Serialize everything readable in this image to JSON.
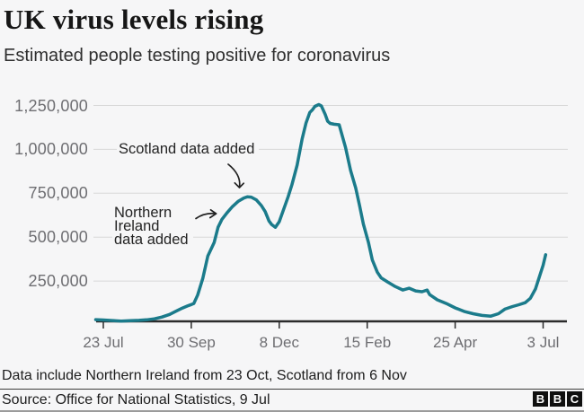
{
  "page": {
    "background": "#f6f6f7",
    "title": "UK virus levels rising",
    "subtitle": "Estimated people testing positive for coronavirus"
  },
  "chart_data": {
    "type": "line",
    "title": "UK virus levels rising",
    "subtitle": "Estimated people testing positive for coronavirus",
    "line_color": "#1b7b8b",
    "grid_color": "#d8d8d8",
    "axis_color": "#2b2b2b",
    "tick_label_color": "#6e6e72",
    "grid": true,
    "legend": false,
    "xlabel": "",
    "ylabel": "",
    "x_axis_dates": [
      "23 Jul",
      "30 Sep",
      "8 Dec",
      "15 Feb",
      "25 Apr",
      "3 Jul"
    ],
    "x_ticks": [
      {
        "day": 0,
        "label": "23 Jul"
      },
      {
        "day": 69,
        "label": "30 Sep"
      },
      {
        "day": 138,
        "label": "8 Dec"
      },
      {
        "day": 207,
        "label": "15 Feb"
      },
      {
        "day": 276,
        "label": "25 Apr"
      },
      {
        "day": 345,
        "label": "3 Jul"
      }
    ],
    "y_ticks": [
      {
        "value": 250000,
        "label": "250,000"
      },
      {
        "value": 500000,
        "label": "500,000"
      },
      {
        "value": 750000,
        "label": "750,000"
      },
      {
        "value": 1000000,
        "label": "1,000,000"
      },
      {
        "value": 1250000,
        "label": "1,250,000"
      }
    ],
    "ylim": [
      0,
      1300000
    ],
    "xlim_days": [
      -6,
      347
    ],
    "annotations": [
      {
        "id": "scotland",
        "text": "Scotland data added"
      },
      {
        "id": "northern-ireland",
        "text": "Northern Ireland data added",
        "lines": [
          "Northern",
          "Ireland",
          "data added"
        ]
      }
    ],
    "series": [
      {
        "name": "Estimated people testing positive",
        "points": [
          [
            -6,
            30000
          ],
          [
            0,
            28000
          ],
          [
            7,
            25000
          ],
          [
            14,
            22000
          ],
          [
            21,
            24000
          ],
          [
            28,
            26000
          ],
          [
            34,
            29000
          ],
          [
            40,
            35000
          ],
          [
            46,
            45000
          ],
          [
            52,
            60000
          ],
          [
            57,
            78000
          ],
          [
            62,
            96000
          ],
          [
            66,
            108000
          ],
          [
            69,
            116000
          ],
          [
            71,
            122000
          ],
          [
            74,
            170000
          ],
          [
            78,
            265000
          ],
          [
            82,
            392000
          ],
          [
            87,
            470000
          ],
          [
            90,
            556000
          ],
          [
            93,
            600000
          ],
          [
            97,
            638000
          ],
          [
            101,
            672000
          ],
          [
            106,
            705000
          ],
          [
            110,
            722000
          ],
          [
            113,
            730000
          ],
          [
            116,
            728000
          ],
          [
            120,
            712000
          ],
          [
            124,
            680000
          ],
          [
            127,
            645000
          ],
          [
            130,
            592000
          ],
          [
            132,
            572000
          ],
          [
            135,
            556000
          ],
          [
            138,
            588000
          ],
          [
            141,
            650000
          ],
          [
            145,
            730000
          ],
          [
            148,
            800000
          ],
          [
            152,
            910000
          ],
          [
            156,
            1060000
          ],
          [
            159,
            1150000
          ],
          [
            162,
            1210000
          ],
          [
            164,
            1225000
          ],
          [
            166,
            1245000
          ],
          [
            169,
            1255000
          ],
          [
            171,
            1248000
          ],
          [
            174,
            1200000
          ],
          [
            176,
            1160000
          ],
          [
            178,
            1148000
          ],
          [
            181,
            1143000
          ],
          [
            185,
            1140000
          ],
          [
            190,
            1010000
          ],
          [
            194,
            880000
          ],
          [
            198,
            780000
          ],
          [
            201,
            680000
          ],
          [
            204,
            575000
          ],
          [
            208,
            470000
          ],
          [
            211,
            370000
          ],
          [
            215,
            300000
          ],
          [
            218,
            268000
          ],
          [
            223,
            245000
          ],
          [
            229,
            219000
          ],
          [
            235,
            199000
          ],
          [
            240,
            209000
          ],
          [
            245,
            194000
          ],
          [
            250,
            189000
          ],
          [
            254,
            199000
          ],
          [
            256,
            173000
          ],
          [
            262,
            143000
          ],
          [
            269,
            122000
          ],
          [
            276,
            97000
          ],
          [
            283,
            77000
          ],
          [
            290,
            64000
          ],
          [
            297,
            54000
          ],
          [
            304,
            50000
          ],
          [
            310,
            64000
          ],
          [
            315,
            90000
          ],
          [
            321,
            105000
          ],
          [
            326,
            115000
          ],
          [
            331,
            127000
          ],
          [
            335,
            152000
          ],
          [
            339,
            205000
          ],
          [
            342,
            272000
          ],
          [
            345,
            340000
          ],
          [
            347,
            400000
          ]
        ]
      }
    ]
  },
  "footer": {
    "note": "Data include Northern Ireland from 23 Oct, Scotland from 6 Nov",
    "source": "Source: Office for National Statistics, 9 Jul",
    "logo_letters": [
      "B",
      "B",
      "C"
    ]
  }
}
